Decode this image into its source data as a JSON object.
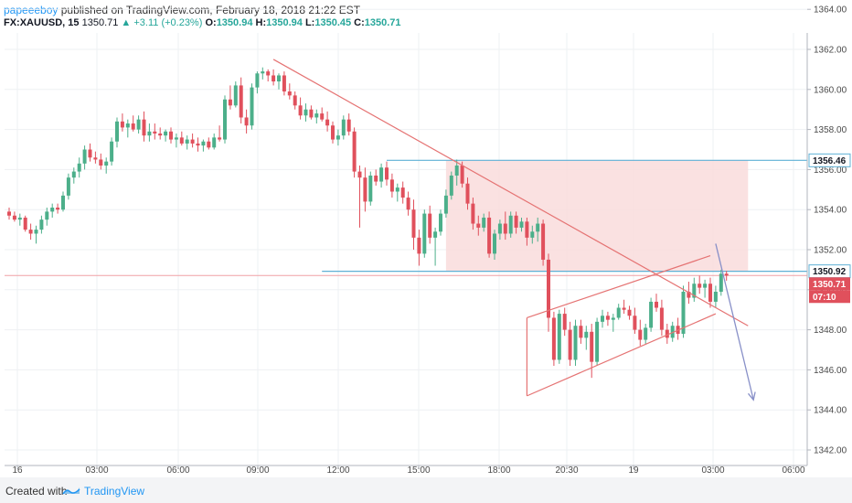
{
  "header": {
    "author": "papeeeboy",
    "published_text": "published on TradingView.com, February 18, 2018 21:22 EST",
    "symbol": "FX:XAUUSD, 15",
    "last": "1350.71",
    "change": "▲ +3.11 (+0.23%)",
    "o_label": "O:",
    "o": "1350.94",
    "h_label": "H:",
    "h": "1350.94",
    "l_label": "L:",
    "l": "1350.45",
    "c_label": "C:",
    "c": "1350.71"
  },
  "footer": {
    "created_with": "Created with",
    "brand": "TradingView"
  },
  "colors": {
    "up": "#4caf8a",
    "down": "#e0505c",
    "trend": "#e57373",
    "hline": "#5fb0d6",
    "zone": "#f9dcdc",
    "arrow": "#8890c8",
    "grid": "#eef0f3"
  },
  "chart_data": {
    "type": "candlestick",
    "y_axis": {
      "min": 1341,
      "max": 1365,
      "ticks": [
        1342,
        1344,
        1346,
        1348,
        1350,
        1352,
        1354,
        1356,
        1358,
        1360,
        1362,
        1364
      ],
      "tick_labels": [
        "1342.00",
        "1344.00",
        "1346.00",
        "1348.00",
        "1350.00",
        "1352.00",
        "1354.00",
        "1356.00",
        "1358.00",
        "1360.00",
        "1362.00",
        "1364.00"
      ]
    },
    "x_axis": {
      "labels": [
        "16",
        "03:00",
        "06:00",
        "09:00",
        "12:00",
        "15:00",
        "18:00",
        "20:30",
        "19",
        "03:00",
        "06:00"
      ]
    },
    "price_tags": [
      {
        "value": 1356.46,
        "label": "1356.46",
        "style": "outline"
      },
      {
        "value": 1350.92,
        "label": "1350.92",
        "style": "outline"
      },
      {
        "value": 1350.71,
        "label": "1350.71",
        "style": "filled"
      },
      {
        "value": 1350.0,
        "label": "07:10",
        "style": "filled"
      }
    ],
    "horizontal_levels": [
      {
        "value": 1356.46,
        "from_bar": 70
      },
      {
        "value": 1350.92,
        "from_bar": 58
      }
    ],
    "current_price": 1350.71,
    "zone": {
      "top": 1356.46,
      "bottom": 1350.92,
      "from_bar": 81,
      "to_bar": 137
    },
    "trend_lines": [
      {
        "from": [
          49,
          1361.5
        ],
        "to": [
          137,
          1348.2
        ]
      },
      {
        "from": [
          96,
          1344.7
        ],
        "to": [
          131,
          1348.8
        ]
      },
      {
        "from": [
          96,
          1348.6
        ],
        "to": [
          130,
          1351.7
        ]
      },
      {
        "from": [
          96,
          1344.7
        ],
        "to": [
          96,
          1348.6
        ]
      }
    ],
    "arrow": {
      "from": [
        131,
        1352.3
      ],
      "to": [
        138,
        1344.5
      ]
    },
    "candles": [
      [
        1353.9,
        1354.1,
        1353.5,
        1353.7
      ],
      [
        1353.7,
        1353.9,
        1353.4,
        1353.5
      ],
      [
        1353.5,
        1353.8,
        1353.2,
        1353.6
      ],
      [
        1353.6,
        1353.7,
        1352.9,
        1353.0
      ],
      [
        1353.0,
        1353.3,
        1352.5,
        1352.8
      ],
      [
        1352.8,
        1353.2,
        1352.3,
        1353.0
      ],
      [
        1353.0,
        1353.7,
        1352.8,
        1353.5
      ],
      [
        1353.5,
        1354.1,
        1353.2,
        1353.9
      ],
      [
        1353.9,
        1354.3,
        1353.6,
        1354.1
      ],
      [
        1354.1,
        1354.3,
        1353.8,
        1354.0
      ],
      [
        1354.0,
        1354.9,
        1353.9,
        1354.7
      ],
      [
        1354.7,
        1355.8,
        1354.5,
        1355.6
      ],
      [
        1355.6,
        1356.1,
        1355.3,
        1355.9
      ],
      [
        1355.9,
        1356.6,
        1355.6,
        1356.3
      ],
      [
        1356.3,
        1357.2,
        1356.0,
        1357.0
      ],
      [
        1357.0,
        1357.3,
        1356.4,
        1356.6
      ],
      [
        1356.6,
        1356.9,
        1356.3,
        1356.5
      ],
      [
        1356.5,
        1356.8,
        1356.0,
        1356.2
      ],
      [
        1356.2,
        1356.6,
        1355.8,
        1356.4
      ],
      [
        1356.4,
        1357.6,
        1356.2,
        1357.4
      ],
      [
        1357.4,
        1358.6,
        1357.1,
        1358.4
      ],
      [
        1358.4,
        1358.8,
        1357.9,
        1358.1
      ],
      [
        1358.1,
        1358.5,
        1357.6,
        1358.3
      ],
      [
        1358.3,
        1358.7,
        1357.9,
        1358.0
      ],
      [
        1358.0,
        1358.7,
        1357.8,
        1358.5
      ],
      [
        1358.5,
        1358.9,
        1357.4,
        1357.7
      ],
      [
        1357.7,
        1358.3,
        1357.4,
        1357.9
      ],
      [
        1357.9,
        1358.3,
        1357.5,
        1357.8
      ],
      [
        1357.8,
        1358.1,
        1357.5,
        1357.7
      ],
      [
        1357.7,
        1358.0,
        1357.4,
        1357.9
      ],
      [
        1357.9,
        1358.1,
        1357.3,
        1357.5
      ],
      [
        1357.5,
        1357.8,
        1357.1,
        1357.6
      ],
      [
        1357.6,
        1357.9,
        1357.2,
        1357.3
      ],
      [
        1357.3,
        1357.7,
        1357.0,
        1357.5
      ],
      [
        1357.5,
        1357.8,
        1357.1,
        1357.3
      ],
      [
        1357.3,
        1357.6,
        1356.9,
        1357.2
      ],
      [
        1357.2,
        1357.5,
        1356.9,
        1357.4
      ],
      [
        1357.4,
        1357.6,
        1357.0,
        1357.1
      ],
      [
        1357.1,
        1357.8,
        1357.0,
        1357.6
      ],
      [
        1357.6,
        1358.2,
        1357.4,
        1357.5
      ],
      [
        1357.5,
        1359.7,
        1357.3,
        1359.5
      ],
      [
        1359.5,
        1360.2,
        1359.0,
        1359.2
      ],
      [
        1359.2,
        1360.4,
        1359.1,
        1360.2
      ],
      [
        1360.2,
        1360.6,
        1358.3,
        1358.6
      ],
      [
        1358.6,
        1359.0,
        1357.8,
        1358.2
      ],
      [
        1358.2,
        1360.3,
        1358.0,
        1360.1
      ],
      [
        1360.1,
        1360.9,
        1359.8,
        1360.8
      ],
      [
        1360.8,
        1361.1,
        1360.5,
        1360.9
      ],
      [
        1360.9,
        1361.0,
        1360.4,
        1360.7
      ],
      [
        1360.7,
        1361.0,
        1360.2,
        1360.4
      ],
      [
        1360.4,
        1360.8,
        1360.0,
        1360.7
      ],
      [
        1360.7,
        1360.9,
        1359.7,
        1359.9
      ],
      [
        1359.9,
        1360.3,
        1359.5,
        1359.7
      ],
      [
        1359.7,
        1359.9,
        1359.0,
        1359.2
      ],
      [
        1359.2,
        1359.6,
        1358.5,
        1358.7
      ],
      [
        1358.7,
        1359.3,
        1358.4,
        1359.0
      ],
      [
        1359.0,
        1359.2,
        1358.5,
        1358.6
      ],
      [
        1358.6,
        1359.0,
        1358.3,
        1358.8
      ],
      [
        1358.8,
        1359.1,
        1358.4,
        1358.5
      ],
      [
        1358.5,
        1358.9,
        1357.9,
        1358.2
      ],
      [
        1358.2,
        1358.4,
        1357.3,
        1357.5
      ],
      [
        1357.5,
        1358.0,
        1357.2,
        1357.7
      ],
      [
        1357.7,
        1358.7,
        1357.5,
        1358.5
      ],
      [
        1358.5,
        1358.8,
        1357.7,
        1357.9
      ],
      [
        1357.9,
        1358.1,
        1355.6,
        1355.9
      ],
      [
        1355.9,
        1356.2,
        1353.1,
        1355.6
      ],
      [
        1355.6,
        1356.1,
        1353.9,
        1354.4
      ],
      [
        1354.4,
        1355.9,
        1354.2,
        1355.7
      ],
      [
        1355.7,
        1356.0,
        1355.2,
        1355.4
      ],
      [
        1355.4,
        1356.3,
        1355.1,
        1356.1
      ],
      [
        1356.1,
        1356.4,
        1355.2,
        1355.5
      ],
      [
        1355.5,
        1355.8,
        1354.6,
        1354.9
      ],
      [
        1354.9,
        1355.3,
        1354.4,
        1355.1
      ],
      [
        1355.1,
        1355.4,
        1354.3,
        1354.6
      ],
      [
        1354.6,
        1354.9,
        1353.7,
        1354.0
      ],
      [
        1354.0,
        1354.5,
        1352.0,
        1352.6
      ],
      [
        1352.6,
        1353.0,
        1351.2,
        1351.8
      ],
      [
        1351.8,
        1354.0,
        1351.6,
        1353.8
      ],
      [
        1353.8,
        1354.2,
        1352.3,
        1352.6
      ],
      [
        1352.6,
        1353.1,
        1351.2,
        1352.9
      ],
      [
        1352.9,
        1354.0,
        1352.7,
        1353.8
      ],
      [
        1353.8,
        1355.0,
        1353.6,
        1354.7
      ],
      [
        1354.7,
        1355.9,
        1354.5,
        1355.7
      ],
      [
        1355.7,
        1356.5,
        1355.2,
        1356.2
      ],
      [
        1356.2,
        1356.4,
        1355.1,
        1355.3
      ],
      [
        1355.3,
        1355.6,
        1354.0,
        1354.3
      ],
      [
        1354.3,
        1354.6,
        1353.0,
        1353.3
      ],
      [
        1353.3,
        1353.7,
        1352.7,
        1353.1
      ],
      [
        1353.1,
        1353.8,
        1352.9,
        1353.6
      ],
      [
        1353.6,
        1353.9,
        1351.6,
        1351.8
      ],
      [
        1351.8,
        1353.0,
        1351.5,
        1352.8
      ],
      [
        1352.8,
        1353.5,
        1352.5,
        1353.3
      ],
      [
        1353.3,
        1353.9,
        1352.5,
        1352.8
      ],
      [
        1352.8,
        1353.9,
        1352.6,
        1353.7
      ],
      [
        1353.7,
        1353.9,
        1352.8,
        1353.1
      ],
      [
        1353.1,
        1353.6,
        1352.9,
        1353.4
      ],
      [
        1353.4,
        1353.6,
        1352.2,
        1352.6
      ],
      [
        1352.6,
        1353.2,
        1352.3,
        1352.9
      ],
      [
        1352.9,
        1353.6,
        1352.4,
        1353.3
      ],
      [
        1353.3,
        1353.5,
        1351.2,
        1351.5
      ],
      [
        1351.5,
        1351.8,
        1347.9,
        1348.6
      ],
      [
        1348.6,
        1348.9,
        1346.2,
        1346.5
      ],
      [
        1346.5,
        1349.0,
        1346.3,
        1348.8
      ],
      [
        1348.8,
        1349.1,
        1347.7,
        1348.0
      ],
      [
        1348.0,
        1348.4,
        1346.2,
        1346.5
      ],
      [
        1346.5,
        1348.5,
        1346.2,
        1348.2
      ],
      [
        1348.2,
        1348.5,
        1347.3,
        1347.6
      ],
      [
        1347.6,
        1348.2,
        1347.0,
        1347.9
      ],
      [
        1347.9,
        1348.3,
        1345.6,
        1346.4
      ],
      [
        1346.4,
        1348.6,
        1346.2,
        1348.4
      ],
      [
        1348.4,
        1349.0,
        1348.1,
        1348.7
      ],
      [
        1348.7,
        1348.9,
        1348.2,
        1348.5
      ],
      [
        1348.5,
        1348.8,
        1347.9,
        1348.6
      ],
      [
        1348.6,
        1349.3,
        1348.5,
        1349.1
      ],
      [
        1349.1,
        1349.5,
        1348.8,
        1349.0
      ],
      [
        1349.0,
        1349.2,
        1348.5,
        1348.7
      ],
      [
        1348.7,
        1349.1,
        1347.8,
        1348.0
      ],
      [
        1348.0,
        1348.5,
        1347.2,
        1347.5
      ],
      [
        1347.5,
        1348.3,
        1347.3,
        1348.1
      ],
      [
        1348.1,
        1349.6,
        1347.9,
        1349.4
      ],
      [
        1349.4,
        1349.8,
        1348.9,
        1349.1
      ],
      [
        1349.1,
        1349.5,
        1347.7,
        1348.0
      ],
      [
        1348.0,
        1348.3,
        1347.3,
        1347.6
      ],
      [
        1347.6,
        1348.4,
        1347.4,
        1348.2
      ],
      [
        1348.2,
        1348.6,
        1347.5,
        1347.8
      ],
      [
        1347.8,
        1350.2,
        1347.6,
        1349.9
      ],
      [
        1349.9,
        1350.4,
        1349.3,
        1349.6
      ],
      [
        1349.6,
        1350.6,
        1349.4,
        1350.3
      ],
      [
        1350.3,
        1350.7,
        1349.8,
        1350.1
      ],
      [
        1350.1,
        1350.5,
        1349.6,
        1350.3
      ],
      [
        1350.3,
        1350.6,
        1349.1,
        1349.4
      ],
      [
        1349.4,
        1350.2,
        1349.1,
        1349.9
      ],
      [
        1349.9,
        1351.0,
        1349.7,
        1350.8
      ],
      [
        1350.8,
        1350.94,
        1350.45,
        1350.71
      ]
    ]
  }
}
